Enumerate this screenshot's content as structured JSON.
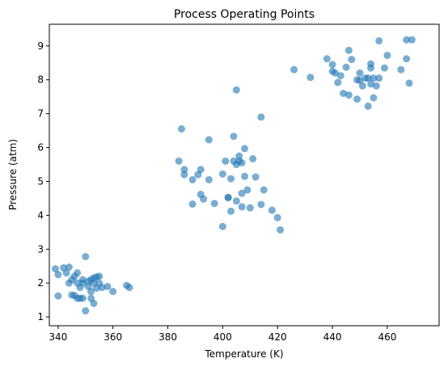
{
  "chart_data": {
    "type": "scatter",
    "title": "Process Operating Points",
    "x_label": "Temperature (K)",
    "y_label": "Pressure (atm)",
    "color": "#1f77b4",
    "x": [
      339,
      340,
      340,
      342,
      343,
      344,
      344,
      345,
      345,
      346,
      346,
      347,
      347,
      347,
      348,
      348,
      349,
      349,
      350,
      350,
      351,
      351,
      352,
      352,
      352,
      353,
      353,
      354,
      354,
      355,
      355,
      356,
      358,
      360,
      365,
      366,
      353,
      349,
      385,
      384,
      386,
      386,
      389,
      389,
      391,
      392,
      392,
      393,
      395,
      395,
      397,
      400,
      400,
      401,
      402,
      402,
      403,
      403,
      404,
      404,
      405,
      405,
      405,
      406,
      406,
      407,
      407,
      407,
      408,
      408,
      409,
      410,
      411,
      412,
      414,
      414,
      415,
      418,
      420,
      421,
      426,
      432,
      438,
      440,
      440,
      441,
      442,
      443,
      444,
      445,
      446,
      446,
      447,
      449,
      449,
      450,
      450,
      451,
      452,
      453,
      453,
      454,
      454,
      454,
      455,
      455,
      456,
      457,
      457,
      459,
      460,
      465,
      467,
      467,
      468,
      469
    ],
    "y": [
      2.42,
      2.25,
      1.62,
      2.45,
      2.3,
      2.47,
      2.0,
      2.1,
      1.65,
      1.63,
      2.2,
      2.3,
      1.55,
      2.0,
      1.87,
      1.55,
      1.55,
      2.1,
      2.78,
      1.18,
      1.9,
      2.05,
      1.75,
      1.55,
      2.1,
      1.4,
      2.0,
      2.18,
      1.85,
      2.0,
      2.2,
      1.87,
      1.9,
      1.75,
      1.93,
      1.87,
      2.15,
      2.0,
      6.55,
      5.6,
      5.35,
      5.2,
      5.05,
      4.33,
      5.2,
      5.35,
      4.62,
      4.48,
      6.23,
      5.05,
      4.35,
      5.22,
      3.67,
      5.6,
      4.52,
      4.53,
      5.08,
      4.12,
      6.33,
      5.6,
      5.5,
      7.7,
      4.42,
      5.75,
      5.6,
      4.25,
      5.55,
      4.65,
      5.97,
      5.15,
      4.75,
      4.22,
      5.67,
      5.13,
      6.9,
      4.32,
      4.75,
      4.15,
      3.93,
      3.57,
      8.3,
      8.07,
      8.62,
      8.25,
      8.45,
      8.2,
      7.92,
      8.12,
      7.6,
      8.37,
      8.87,
      7.55,
      8.6,
      7.43,
      8.0,
      8.2,
      7.98,
      7.82,
      8.05,
      7.22,
      8.05,
      8.35,
      7.88,
      8.47,
      8.05,
      7.47,
      7.82,
      9.15,
      8.05,
      8.35,
      8.72,
      8.3,
      8.62,
      9.18,
      7.9,
      9.18
    ],
    "xlim": [
      336.8,
      478.9
    ],
    "ylim": [
      0.74,
      9.64
    ],
    "xticks": [
      340,
      360,
      380,
      400,
      420,
      440,
      460
    ],
    "yticks": [
      1,
      2,
      3,
      4,
      5,
      6,
      7,
      8,
      9
    ]
  }
}
